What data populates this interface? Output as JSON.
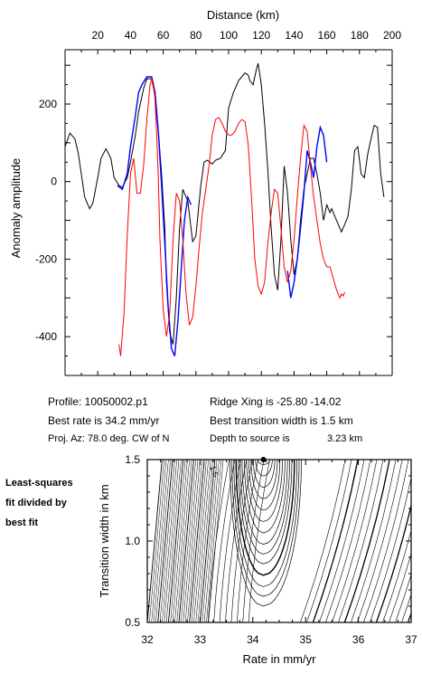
{
  "chart_data": [
    {
      "type": "line",
      "xlabel": "Distance (km)",
      "ylabel": "Anomaly amplitude",
      "xlim": [
        0,
        200
      ],
      "ylim": [
        -500,
        340
      ],
      "x_ticks": [
        20,
        40,
        60,
        80,
        100,
        120,
        140,
        160,
        180,
        200
      ],
      "y_ticks": [
        200,
        0,
        -200,
        -400
      ],
      "series": [
        {
          "color": "#000000",
          "x": [
            0,
            3,
            6,
            8,
            12,
            15,
            17,
            20,
            22,
            25,
            28,
            30,
            33,
            35,
            38,
            40,
            43,
            45,
            48,
            50,
            53,
            55,
            57,
            59,
            61,
            62,
            64,
            66,
            68,
            70,
            72,
            75,
            78,
            80,
            83,
            85,
            87,
            90,
            92,
            95,
            98,
            100,
            103,
            106,
            108,
            110,
            112,
            113,
            115,
            117,
            118,
            120,
            122,
            124,
            126,
            128,
            130,
            132,
            134,
            136,
            138,
            140,
            142,
            144,
            146,
            148,
            150,
            152,
            154,
            156,
            158,
            160,
            162,
            163,
            165,
            167,
            169,
            171,
            173,
            175,
            177,
            179,
            181,
            183,
            185,
            187,
            189,
            191,
            193,
            195
          ],
          "y": [
            90,
            125,
            110,
            75,
            -40,
            -70,
            -55,
            10,
            60,
            85,
            60,
            10,
            -10,
            -15,
            10,
            50,
            120,
            180,
            240,
            265,
            265,
            220,
            130,
            20,
            -120,
            -260,
            -390,
            -420,
            -300,
            -120,
            -20,
            -50,
            -155,
            -140,
            -10,
            50,
            55,
            45,
            55,
            60,
            80,
            190,
            230,
            260,
            270,
            280,
            275,
            260,
            250,
            290,
            305,
            250,
            150,
            30,
            -120,
            -240,
            -280,
            -150,
            40,
            -30,
            -150,
            -240,
            -200,
            -100,
            -20,
            20,
            60,
            60,
            20,
            -30,
            -100,
            -60,
            -80,
            -70,
            -90,
            -110,
            -130,
            -110,
            -90,
            -20,
            80,
            90,
            20,
            10,
            70,
            110,
            145,
            140,
            20,
            -40
          ]
        },
        {
          "color": "#0000ff",
          "x": [
            32,
            35,
            38,
            40,
            43,
            45,
            47,
            50,
            53,
            55,
            57,
            59,
            61,
            63,
            65,
            67,
            69,
            71,
            73,
            75,
            77
          ],
          "y": [
            -10,
            -20,
            20,
            90,
            170,
            230,
            250,
            270,
            270,
            230,
            130,
            -10,
            -160,
            -320,
            -430,
            -450,
            -360,
            -230,
            -100,
            -40,
            -60
          ],
          "x2": [
            136,
            138,
            140,
            142,
            144,
            146,
            148,
            150,
            152,
            154,
            156,
            158,
            160
          ],
          "y2": [
            -230,
            -300,
            -260,
            -200,
            -120,
            -30,
            80,
            50,
            10,
            90,
            140,
            120,
            50
          ]
        },
        {
          "color": "#ff0000",
          "x": [
            33,
            34,
            36,
            38,
            40,
            42,
            44,
            46,
            48,
            50,
            52,
            53,
            54,
            55,
            56,
            57,
            58,
            60,
            62,
            64,
            66,
            68,
            70,
            72,
            74,
            76,
            78,
            80,
            82,
            84,
            86,
            88,
            90,
            92,
            94,
            96,
            98,
            100,
            102,
            104,
            106,
            108,
            110,
            112,
            114,
            116,
            118,
            120,
            122,
            124,
            126,
            128,
            130,
            132,
            134,
            136,
            138,
            140,
            142,
            144,
            146,
            148,
            150,
            152,
            154,
            156,
            158,
            160,
            162,
            164,
            166,
            168,
            169,
            170,
            171
          ],
          "y": [
            -420,
            -450,
            -340,
            -140,
            20,
            60,
            -30,
            -30,
            40,
            160,
            250,
            265,
            255,
            210,
            120,
            10,
            -150,
            -330,
            -400,
            -340,
            -150,
            -30,
            -50,
            -150,
            -290,
            -370,
            -350,
            -270,
            -170,
            -80,
            -20,
            40,
            120,
            160,
            165,
            150,
            130,
            120,
            120,
            130,
            150,
            160,
            155,
            95,
            -40,
            -200,
            -270,
            -290,
            -260,
            -160,
            -80,
            -20,
            -30,
            -120,
            -220,
            -260,
            -230,
            -150,
            -40,
            60,
            145,
            130,
            40,
            -40,
            -100,
            -160,
            -200,
            -220,
            -220,
            -250,
            -280,
            -300,
            -290,
            -295,
            -285
          ]
        }
      ]
    },
    {
      "type": "contour",
      "xlabel": "Rate in mm/yr",
      "ylabel": "Transition width in km",
      "xlim": [
        32,
        37
      ],
      "ylim": [
        0.5,
        1.5
      ],
      "x_ticks": [
        32,
        33,
        34,
        35,
        36,
        37
      ],
      "y_ticks": [
        0.5,
        1.0,
        1.5
      ],
      "contour_label": "1.5",
      "best_fit_point": {
        "x": 34.2,
        "y": 1.5
      }
    }
  ],
  "info": {
    "profile": "Profile: 10050002.p1",
    "best_rate": "Best rate is 34.2 mm/yr",
    "proj_az": "Proj. Az: 78.0 deg. CW of N",
    "ridge_xing": "Ridge Xing is -25.80 -14.02",
    "best_transition": "Best transition width is 1.5 km",
    "depth": "Depth to source is",
    "depth_value": "3.23 km"
  },
  "side_note": [
    "Least-squares",
    "fit divided by",
    "best fit"
  ]
}
